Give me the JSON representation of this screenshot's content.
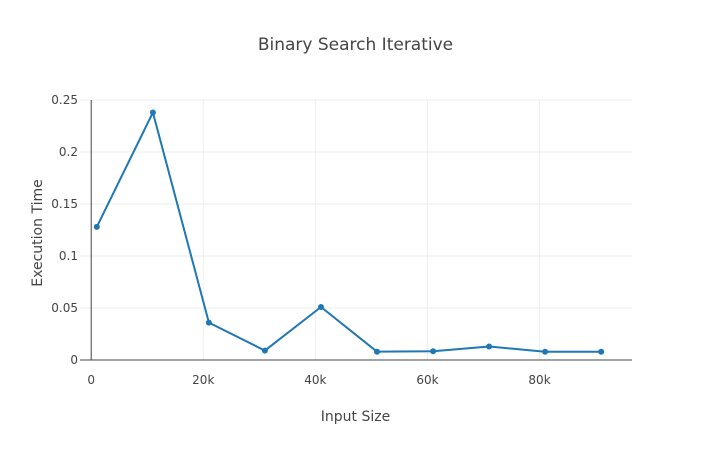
{
  "chart_data": {
    "type": "line",
    "title": "Binary Search Iterative",
    "xlabel": "Input Size",
    "ylabel": "Execution Time",
    "xlim": [
      -2000,
      96500
    ],
    "ylim": [
      0,
      0.25
    ],
    "grid": true,
    "x_ticks": [
      {
        "value": 0,
        "label": "0"
      },
      {
        "value": 20000,
        "label": "20k"
      },
      {
        "value": 40000,
        "label": "40k"
      },
      {
        "value": 60000,
        "label": "60k"
      },
      {
        "value": 80000,
        "label": "80k"
      }
    ],
    "y_ticks": [
      {
        "value": 0,
        "label": "0"
      },
      {
        "value": 0.05,
        "label": "0.05"
      },
      {
        "value": 0.1,
        "label": "0.1"
      },
      {
        "value": 0.15,
        "label": "0.15"
      },
      {
        "value": 0.2,
        "label": "0.2"
      },
      {
        "value": 0.25,
        "label": "0.25"
      }
    ],
    "series": [
      {
        "color": "#1f77b4",
        "x": [
          1000,
          11000,
          21000,
          31000,
          41000,
          51000,
          61000,
          71000,
          81000,
          91000
        ],
        "y": [
          0.128,
          0.238,
          0.036,
          0.009,
          0.051,
          0.008,
          0.0085,
          0.013,
          0.008,
          0.008
        ]
      }
    ]
  }
}
